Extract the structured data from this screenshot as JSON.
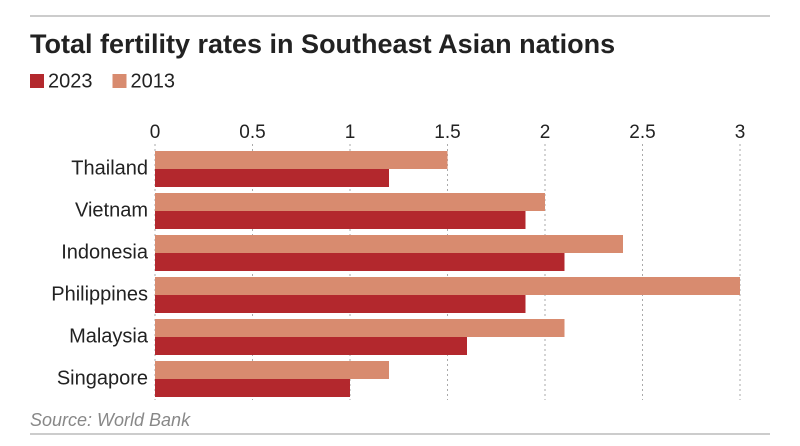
{
  "chart_data": {
    "type": "bar",
    "orientation": "horizontal",
    "title": "Total fertility rates in Southeast Asian nations",
    "source": "Source: World Bank",
    "categories": [
      "Thailand",
      "Vietnam",
      "Indonesia",
      "Philippines",
      "Malaysia",
      "Singapore"
    ],
    "series": [
      {
        "name": "2023",
        "color": "#b3282d",
        "values": [
          1.2,
          1.9,
          2.1,
          1.9,
          1.6,
          1.0
        ]
      },
      {
        "name": "2013",
        "color": "#d88b6f",
        "values": [
          1.5,
          2.0,
          2.4,
          3.0,
          2.1,
          1.2
        ]
      }
    ],
    "xlim": [
      0,
      3
    ],
    "xticks": [
      0,
      0.5,
      1,
      1.5,
      2,
      2.5,
      3
    ],
    "grid": true,
    "legend": "top-left"
  }
}
